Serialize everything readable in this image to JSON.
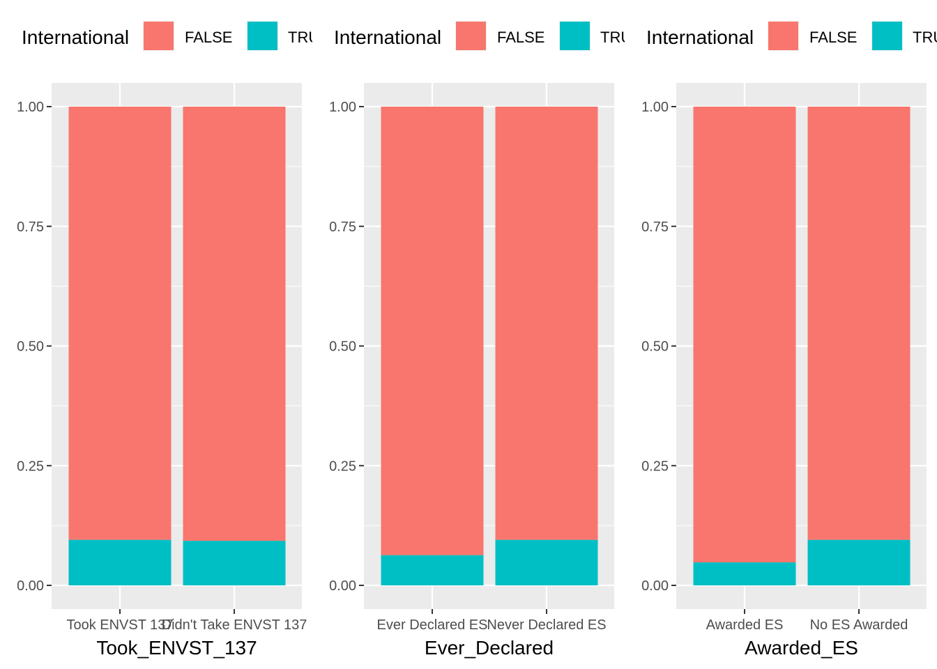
{
  "legend": {
    "title": "International",
    "items": [
      {
        "label": "FALSE",
        "color": "#F8766D"
      },
      {
        "label": "TRUE",
        "color": "#00BFC4"
      }
    ]
  },
  "y_ticks": [
    "0.00",
    "0.25",
    "0.50",
    "0.75",
    "1.00"
  ],
  "chart_data": [
    {
      "type": "bar",
      "stacked": true,
      "xlabel": "Took_ENVST_137",
      "categories": [
        "Took ENVST 137",
        "Didn't Take ENVST 137"
      ],
      "series": [
        {
          "name": "FALSE",
          "values": [
            0.905,
            0.907
          ]
        },
        {
          "name": "TRUE",
          "values": [
            0.095,
            0.093
          ]
        }
      ],
      "ylim": [
        0,
        1
      ],
      "grid": true,
      "legend_position": "top"
    },
    {
      "type": "bar",
      "stacked": true,
      "xlabel": "Ever_Declared",
      "categories": [
        "Ever Declared ES",
        "Never Declared ES"
      ],
      "series": [
        {
          "name": "FALSE",
          "values": [
            0.937,
            0.905
          ]
        },
        {
          "name": "TRUE",
          "values": [
            0.063,
            0.095
          ]
        }
      ],
      "ylim": [
        0,
        1
      ],
      "grid": true,
      "legend_position": "top"
    },
    {
      "type": "bar",
      "stacked": true,
      "xlabel": "Awarded_ES",
      "categories": [
        "Awarded ES",
        "No ES Awarded"
      ],
      "series": [
        {
          "name": "FALSE",
          "values": [
            0.952,
            0.905
          ]
        },
        {
          "name": "TRUE",
          "values": [
            0.048,
            0.095
          ]
        }
      ],
      "ylim": [
        0,
        1
      ],
      "grid": true,
      "legend_position": "top"
    }
  ]
}
